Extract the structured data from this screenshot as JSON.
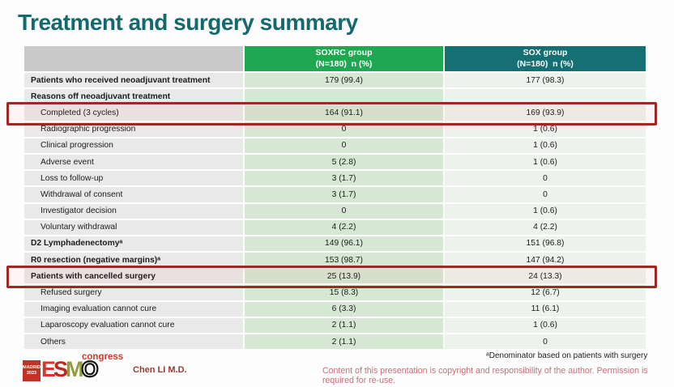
{
  "slide": {
    "title": "Treatment and surgery summary",
    "presenter": "Chen LI M.D.",
    "footnote": "ᵃDenominator based on patients with surgery",
    "copyright": "Content of this presentation is copyright and responsibility of the author. Permission is required for re-use."
  },
  "logo": {
    "venue_line1": "MADRID",
    "venue_line2": "2023",
    "letter_e": "E",
    "letter_s": "S",
    "letter_m": "M",
    "letter_o": "O",
    "congress": "congress"
  },
  "colors": {
    "title_teal": "#14696d",
    "header_green": "#1fa751",
    "header_teal": "#166f72",
    "label_cell_gray": "#e9e9e9",
    "soxrc_cell_green": "#d6e7d3",
    "sox_cell_green": "#edf3ec",
    "highlight_red": "#9e2823",
    "copyright_pink": "#c76e79"
  },
  "table": {
    "columns": [
      {
        "line1": "SOXRC group",
        "line2": "(N=180)  n (%)"
      },
      {
        "line1": "SOX group",
        "line2": "(N=180)  n (%)"
      }
    ],
    "rows": [
      {
        "label": "Patients who received neoadjuvant treatment",
        "soxrc": "179 (99.4)",
        "sox": "177 (98.3)"
      },
      {
        "label": "Reasons off neoadjuvant treatment",
        "soxrc": "",
        "sox": ""
      },
      {
        "label": "Completed (3 cycles)",
        "soxrc": "164 (91.1)",
        "sox": "169 (93.9)"
      },
      {
        "label": "Radiographic progression",
        "soxrc": "0",
        "sox": "1 (0.6)"
      },
      {
        "label": "Clinical progression",
        "soxrc": "0",
        "sox": "1 (0.6)"
      },
      {
        "label": "Adverse event",
        "soxrc": "5 (2.8)",
        "sox": "1 (0.6)"
      },
      {
        "label": "Loss to follow-up",
        "soxrc": "3 (1.7)",
        "sox": "0"
      },
      {
        "label": "Withdrawal of consent",
        "soxrc": "3 (1.7)",
        "sox": "0"
      },
      {
        "label": "Investigator decision",
        "soxrc": "0",
        "sox": "1 (0.6)"
      },
      {
        "label": "Voluntary withdrawal",
        "soxrc": "4 (2.2)",
        "sox": "4 (2.2)"
      },
      {
        "label": "D2 Lymphadenectomyᵃ",
        "soxrc": "149 (96.1)",
        "sox": "151 (96.8)"
      },
      {
        "label": "R0 resection (negative margins)ᵃ",
        "soxrc": "153 (98.7)",
        "sox": "147 (94.2)"
      },
      {
        "label": "Patients with cancelled surgery",
        "soxrc": "25 (13.9)",
        "sox": "24 (13.3)"
      },
      {
        "label": "Refused surgery",
        "soxrc": "15 (8.3)",
        "sox": "12 (6.7)"
      },
      {
        "label": "Imaging evaluation cannot cure",
        "soxrc": "6 (3.3)",
        "sox": "11 (6.1)"
      },
      {
        "label": "Laparoscopy evaluation cannot cure",
        "soxrc": "2 (1.1)",
        "sox": "1 (0.6)"
      },
      {
        "label": "Others",
        "soxrc": "2 (1.1)",
        "sox": "0"
      }
    ]
  }
}
